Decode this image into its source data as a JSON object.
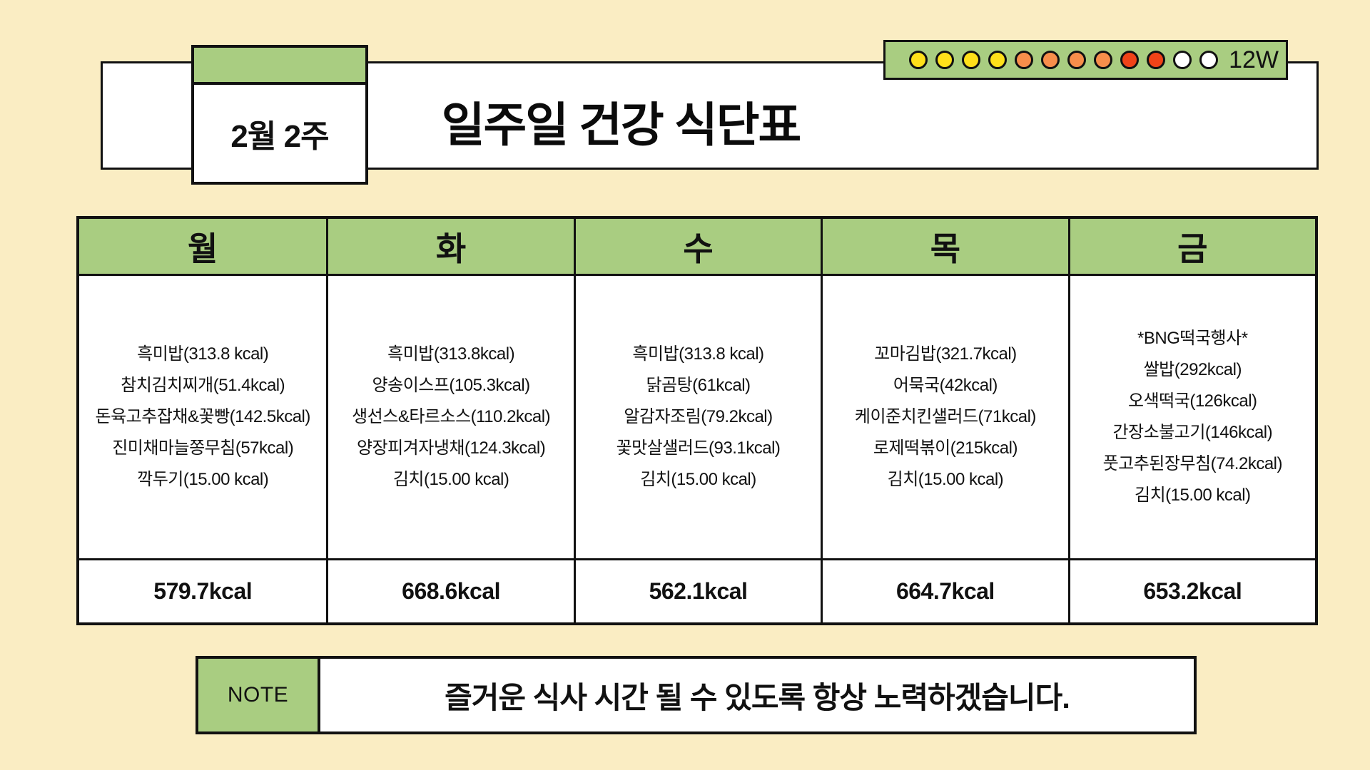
{
  "colors": {
    "background": "#FAEDC3",
    "accent_green": "#A9CD81",
    "border": "#111111",
    "dot_yellow": "#FFE01A",
    "dot_orange": "#F78E4B",
    "dot_red": "#F04318",
    "dot_white": "#FFFFFF"
  },
  "header": {
    "week_label": "2월 2주",
    "title": "일주일 건강 식단표",
    "progress_label": "12W",
    "dots": [
      "#FFE01A",
      "#FFE01A",
      "#FFE01A",
      "#FFE01A",
      "#F78E4B",
      "#F78E4B",
      "#F78E4B",
      "#F78E4B",
      "#F04318",
      "#F04318",
      "#FFFFFF",
      "#FFFFFF"
    ]
  },
  "table": {
    "days": [
      {
        "name": "월",
        "meals": [
          "흑미밥(313.8 kcal)",
          "참치김치찌개(51.4kcal)",
          "돈육고추잡채&꽃빵(142.5kcal)",
          "진미채마늘쫑무침(57kcal)",
          "깍두기(15.00 kcal)"
        ],
        "total": "579.7kcal"
      },
      {
        "name": "화",
        "meals": [
          "흑미밥(313.8kcal)",
          "양송이스프(105.3kcal)",
          "생선스&타르소스(110.2kcal)",
          "양장피겨자냉채(124.3kcal)",
          "김치(15.00 kcal)"
        ],
        "total": "668.6kcal"
      },
      {
        "name": "수",
        "meals": [
          "흑미밥(313.8 kcal)",
          "닭곰탕(61kcal)",
          "알감자조림(79.2kcal)",
          "꽃맛살샐러드(93.1kcal)",
          "김치(15.00 kcal)"
        ],
        "total": "562.1kcal"
      },
      {
        "name": "목",
        "meals": [
          "꼬마김밥(321.7kcal)",
          "어묵국(42kcal)",
          "케이준치킨샐러드(71kcal)",
          "로제떡볶이(215kcal)",
          "김치(15.00 kcal)"
        ],
        "total": "664.7kcal"
      },
      {
        "name": "금",
        "meals": [
          "*BNG떡국행사*",
          "쌀밥(292kcal)",
          "오색떡국(126kcal)",
          "간장소불고기(146kcal)",
          "풋고추된장무침(74.2kcal)",
          "김치(15.00 kcal)"
        ],
        "total": "653.2kcal"
      }
    ]
  },
  "note": {
    "label": "NOTE",
    "text": "즐거운 식사 시간 될 수 있도록 항상 노력하겠습니다."
  }
}
